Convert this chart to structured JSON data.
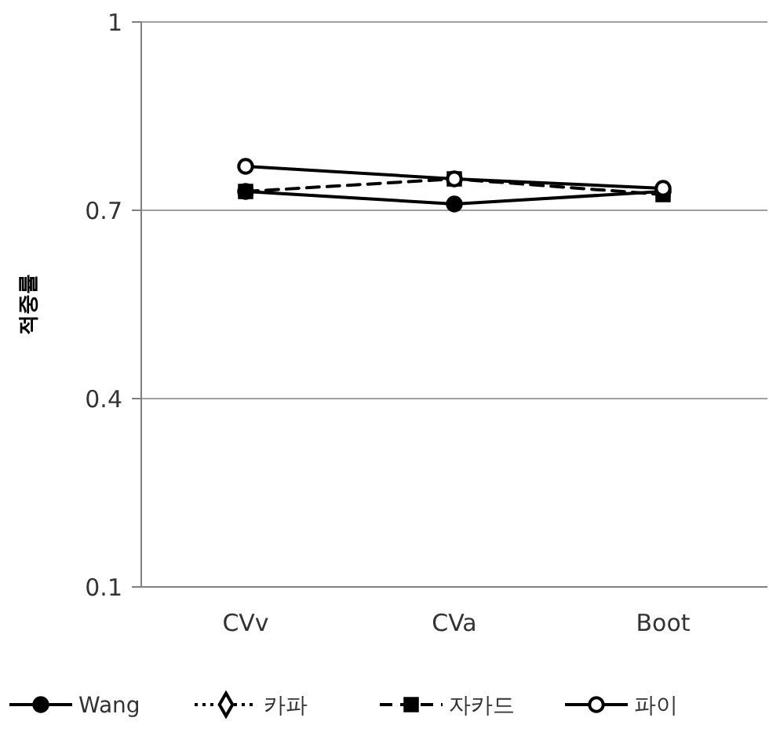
{
  "chart_data": {
    "type": "line",
    "ylabel": "적중률",
    "categories": [
      "CVv",
      "CVa",
      "Boot"
    ],
    "ylim": [
      0.1,
      1
    ],
    "yticks": [
      0.1,
      0.4,
      0.7,
      1
    ],
    "grid": "y",
    "legend": "bottom",
    "series": [
      {
        "name": "Wang",
        "color": "#000000",
        "values": [
          0.73,
          0.71,
          0.73
        ],
        "marker": "circle",
        "line_style": "solid"
      },
      {
        "name": "카파",
        "color": "#000000",
        "values": [
          null,
          null,
          null
        ],
        "marker": "diamond",
        "line_style": "dotted"
      },
      {
        "name": "자카드",
        "color": "#000000",
        "values": [
          0.73,
          0.75,
          0.725
        ],
        "marker": "square",
        "line_style": "dashed"
      },
      {
        "name": "파이",
        "color": "#000000",
        "values": [
          0.77,
          0.75,
          0.735
        ],
        "marker": "circle",
        "line_style": "solid"
      }
    ]
  }
}
